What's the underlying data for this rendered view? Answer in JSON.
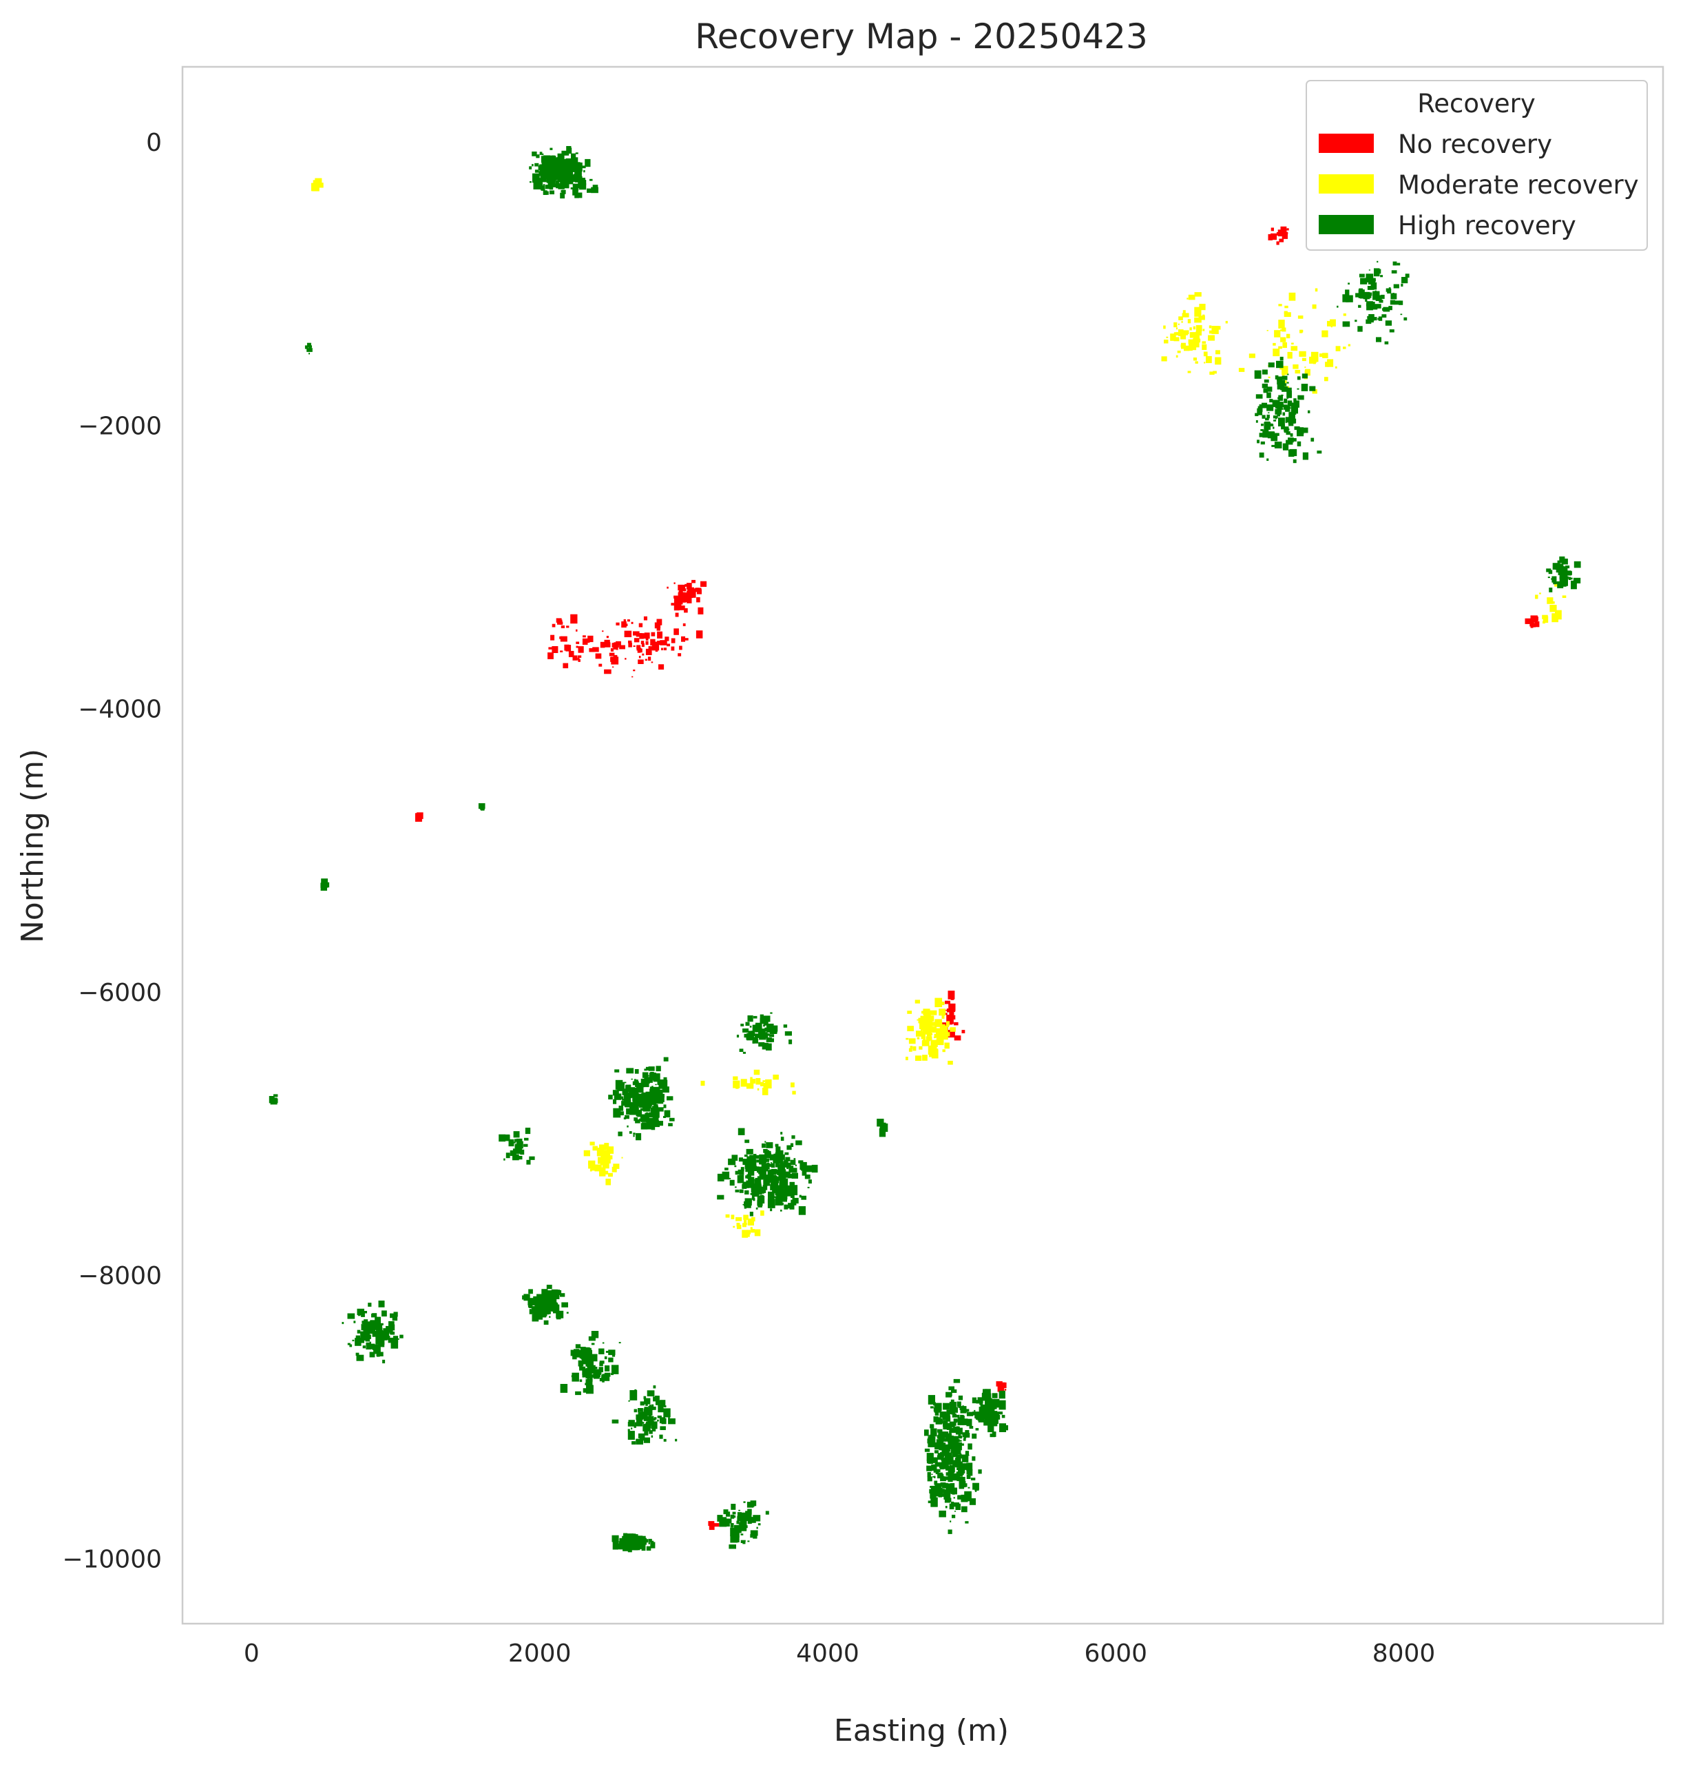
{
  "chart_data": {
    "type": "scatter",
    "title": "Recovery Map - 20250423",
    "xlabel": "Easting (m)",
    "ylabel": "Northing (m)",
    "xlim": [
      -480,
      9800
    ],
    "ylim": [
      -10460,
      530
    ],
    "xticks": [
      0,
      2000,
      4000,
      6000,
      8000
    ],
    "yticks": [
      0,
      -2000,
      -4000,
      -6000,
      -8000,
      -10000
    ],
    "xtick_labels": [
      "0",
      "2000",
      "4000",
      "6000",
      "8000"
    ],
    "ytick_labels": [
      "0",
      "−2000",
      "−4000",
      "−6000",
      "−8000",
      "−10000"
    ],
    "grid": false,
    "legend": {
      "title": "Recovery",
      "placement": "upper right",
      "entries": [
        {
          "label": "No recovery",
          "color": "#ff0000"
        },
        {
          "label": "Moderate recovery",
          "color": "#ffff00"
        },
        {
          "label": "High recovery",
          "color": "#008000"
        }
      ]
    },
    "series": [
      {
        "name": "No recovery",
        "color": "#ff0000",
        "clusters": [
          {
            "x": 2650,
            "y": -3550,
            "dx": 520,
            "dy": 280,
            "n": 90
          },
          {
            "x": 3020,
            "y": -3200,
            "dx": 160,
            "dy": 140,
            "n": 40
          },
          {
            "x": 2230,
            "y": -3550,
            "dx": 250,
            "dy": 250,
            "n": 30
          },
          {
            "x": 4850,
            "y": -6200,
            "dx": 120,
            "dy": 250,
            "n": 20
          },
          {
            "x": 5210,
            "y": -8780,
            "dx": 40,
            "dy": 60,
            "n": 10
          },
          {
            "x": 7150,
            "y": -650,
            "dx": 100,
            "dy": 80,
            "n": 12
          },
          {
            "x": 8900,
            "y": -3400,
            "dx": 50,
            "dy": 80,
            "n": 10
          },
          {
            "x": 3200,
            "y": -9760,
            "dx": 50,
            "dy": 30,
            "n": 4
          },
          {
            "x": 1150,
            "y": -4760,
            "dx": 30,
            "dy": 20,
            "n": 4
          }
        ]
      },
      {
        "name": "Moderate recovery",
        "color": "#ffff00",
        "clusters": [
          {
            "x": 4720,
            "y": -6280,
            "dx": 220,
            "dy": 260,
            "n": 90
          },
          {
            "x": 6550,
            "y": -1400,
            "dx": 280,
            "dy": 400,
            "n": 70
          },
          {
            "x": 7300,
            "y": -1400,
            "dx": 500,
            "dy": 500,
            "n": 60
          },
          {
            "x": 2450,
            "y": -7200,
            "dx": 220,
            "dy": 180,
            "n": 35
          },
          {
            "x": 3400,
            "y": -7650,
            "dx": 200,
            "dy": 150,
            "n": 20
          },
          {
            "x": 3500,
            "y": -6650,
            "dx": 400,
            "dy": 100,
            "n": 20
          },
          {
            "x": 9000,
            "y": -3300,
            "dx": 150,
            "dy": 200,
            "n": 12
          },
          {
            "x": 450,
            "y": -300,
            "dx": 40,
            "dy": 60,
            "n": 8
          }
        ]
      },
      {
        "name": "High recovery",
        "color": "#008000",
        "clusters": [
          {
            "x": 2150,
            "y": -220,
            "dx": 260,
            "dy": 220,
            "n": 220
          },
          {
            "x": 4860,
            "y": -9250,
            "dx": 250,
            "dy": 650,
            "n": 300
          },
          {
            "x": 5120,
            "y": -8950,
            "dx": 130,
            "dy": 200,
            "n": 90
          },
          {
            "x": 3580,
            "y": -7300,
            "dx": 380,
            "dy": 380,
            "n": 260
          },
          {
            "x": 2720,
            "y": -6750,
            "dx": 280,
            "dy": 350,
            "n": 210
          },
          {
            "x": 3550,
            "y": -6300,
            "dx": 260,
            "dy": 180,
            "n": 60
          },
          {
            "x": 2050,
            "y": -8200,
            "dx": 170,
            "dy": 170,
            "n": 100
          },
          {
            "x": 2350,
            "y": -8650,
            "dx": 250,
            "dy": 260,
            "n": 90
          },
          {
            "x": 2750,
            "y": -9000,
            "dx": 250,
            "dy": 280,
            "n": 80
          },
          {
            "x": 2650,
            "y": -9880,
            "dx": 170,
            "dy": 70,
            "n": 90
          },
          {
            "x": 3400,
            "y": -9750,
            "dx": 220,
            "dy": 250,
            "n": 60
          },
          {
            "x": 850,
            "y": -8400,
            "dx": 280,
            "dy": 250,
            "n": 100
          },
          {
            "x": 7150,
            "y": -1900,
            "dx": 300,
            "dy": 500,
            "n": 130
          },
          {
            "x": 7800,
            "y": -1100,
            "dx": 300,
            "dy": 400,
            "n": 80
          },
          {
            "x": 9100,
            "y": -3050,
            "dx": 140,
            "dy": 160,
            "n": 40
          },
          {
            "x": 4380,
            "y": -6950,
            "dx": 40,
            "dy": 80,
            "n": 10
          },
          {
            "x": 1850,
            "y": -7100,
            "dx": 150,
            "dy": 200,
            "n": 25
          },
          {
            "x": 1600,
            "y": -4700,
            "dx": 20,
            "dy": 20,
            "n": 4
          },
          {
            "x": 400,
            "y": -1450,
            "dx": 40,
            "dy": 60,
            "n": 6
          },
          {
            "x": 500,
            "y": -5250,
            "dx": 30,
            "dy": 40,
            "n": 4
          },
          {
            "x": 150,
            "y": -6750,
            "dx": 40,
            "dy": 40,
            "n": 4
          }
        ]
      }
    ]
  }
}
